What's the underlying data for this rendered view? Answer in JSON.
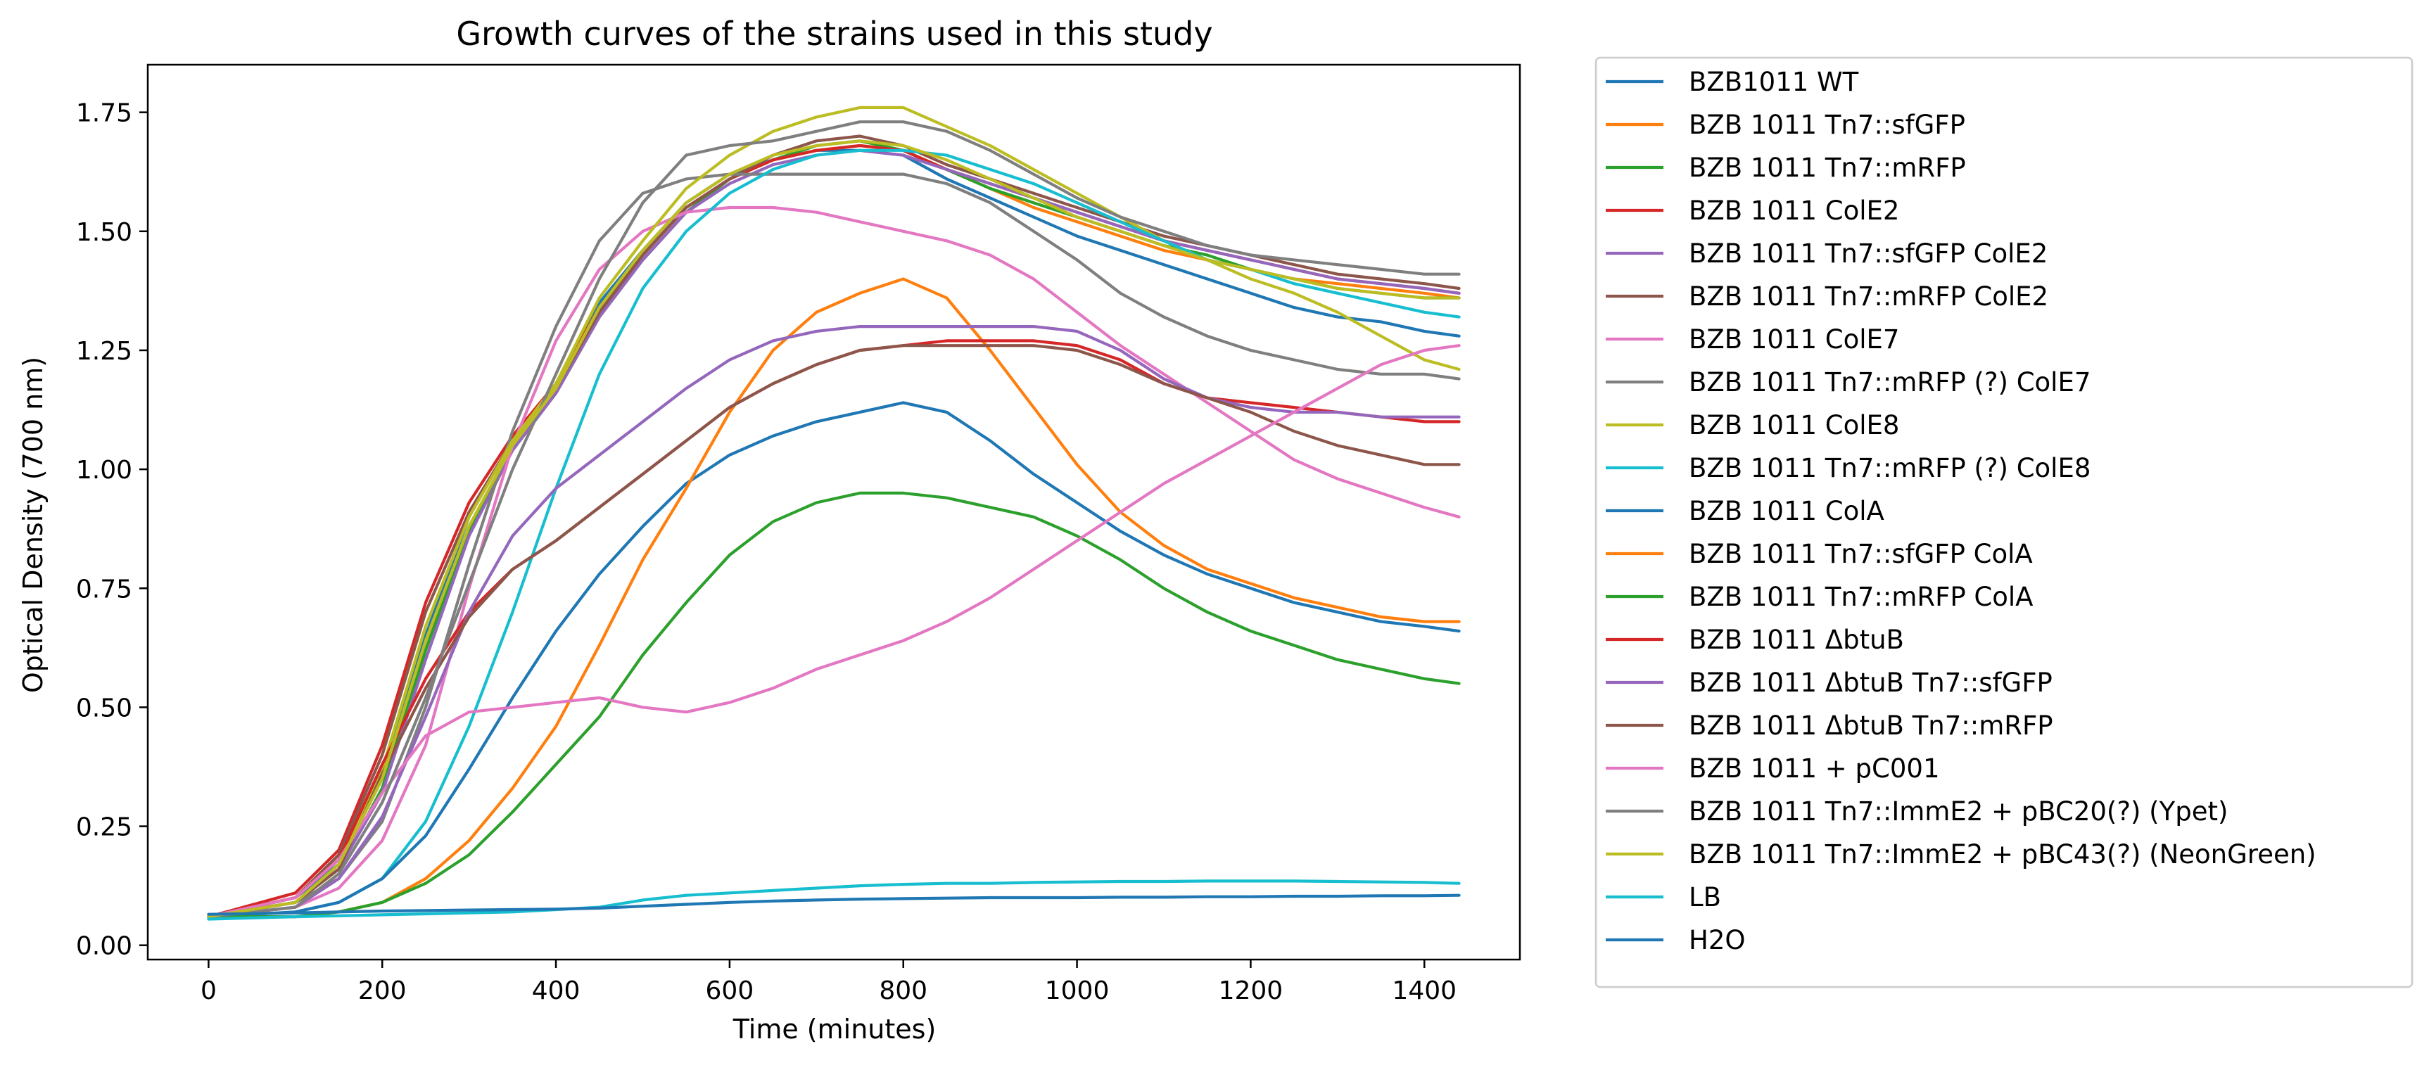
{
  "chart_data": {
    "type": "line",
    "title": "Growth curves of the strains used in this study",
    "xlabel": "Time (minutes)",
    "ylabel": "Optical Density (700 nm)",
    "xlim": [
      -70,
      1510
    ],
    "ylim": [
      -0.03,
      1.85
    ],
    "xticks": [
      0,
      200,
      400,
      600,
      800,
      1000,
      1200,
      1400
    ],
    "xtick_labels": [
      "0",
      "200",
      "400",
      "600",
      "800",
      "1000",
      "1200",
      "1400"
    ],
    "yticks": [
      0.0,
      0.25,
      0.5,
      0.75,
      1.0,
      1.25,
      1.5,
      1.75
    ],
    "ytick_labels": [
      "0.00",
      "0.25",
      "0.50",
      "0.75",
      "1.00",
      "1.25",
      "1.50",
      "1.75"
    ],
    "grid": false,
    "legend_position": "outside-right",
    "x": [
      0,
      100,
      150,
      200,
      250,
      300,
      350,
      400,
      450,
      500,
      550,
      600,
      650,
      700,
      750,
      800,
      850,
      900,
      950,
      1000,
      1050,
      1100,
      1150,
      1200,
      1250,
      1300,
      1350,
      1400,
      1440
    ],
    "series": [
      {
        "name": "BZB1011 WT",
        "color": "#1f77b4",
        "values": [
          0.06,
          0.1,
          0.17,
          0.35,
          0.65,
          0.9,
          1.06,
          1.18,
          1.35,
          1.46,
          1.56,
          1.62,
          1.65,
          1.67,
          1.67,
          1.66,
          1.61,
          1.57,
          1.53,
          1.49,
          1.46,
          1.43,
          1.4,
          1.37,
          1.34,
          1.32,
          1.31,
          1.29,
          1.28
        ]
      },
      {
        "name": "BZB 1011 Tn7::sfGFP",
        "color": "#ff7f0e",
        "values": [
          0.06,
          0.09,
          0.16,
          0.33,
          0.62,
          0.88,
          1.05,
          1.17,
          1.33,
          1.45,
          1.55,
          1.61,
          1.65,
          1.67,
          1.68,
          1.67,
          1.63,
          1.59,
          1.55,
          1.52,
          1.49,
          1.46,
          1.44,
          1.42,
          1.4,
          1.39,
          1.38,
          1.37,
          1.36
        ]
      },
      {
        "name": "BZB 1011 Tn7::mRFP",
        "color": "#2ca02c",
        "values": [
          0.06,
          0.09,
          0.16,
          0.33,
          0.62,
          0.87,
          1.04,
          1.16,
          1.32,
          1.44,
          1.54,
          1.61,
          1.65,
          1.68,
          1.69,
          1.67,
          1.63,
          1.59,
          1.56,
          1.53,
          1.5,
          1.47,
          1.45,
          1.42,
          1.4,
          1.38,
          1.37,
          1.36,
          1.36
        ]
      },
      {
        "name": "BZB 1011 ColE2",
        "color": "#d62728",
        "values": [
          0.06,
          0.11,
          0.2,
          0.42,
          0.72,
          0.93,
          1.07,
          1.18,
          1.34,
          1.45,
          1.55,
          1.61,
          1.65,
          1.67,
          1.68,
          1.67,
          1.63,
          1.6,
          1.57,
          1.54,
          1.51,
          1.48,
          1.46,
          1.44,
          1.42,
          1.4,
          1.39,
          1.38,
          1.37
        ]
      },
      {
        "name": "BZB 1011 Tn7::sfGFP ColE2",
        "color": "#9467bd",
        "values": [
          0.06,
          0.09,
          0.16,
          0.32,
          0.6,
          0.86,
          1.04,
          1.16,
          1.32,
          1.44,
          1.54,
          1.6,
          1.64,
          1.66,
          1.67,
          1.66,
          1.63,
          1.6,
          1.57,
          1.54,
          1.51,
          1.48,
          1.46,
          1.44,
          1.42,
          1.4,
          1.39,
          1.38,
          1.37
        ]
      },
      {
        "name": "BZB 1011 Tn7::mRFP ColE2",
        "color": "#8c564b",
        "values": [
          0.06,
          0.1,
          0.19,
          0.4,
          0.7,
          0.91,
          1.06,
          1.17,
          1.33,
          1.45,
          1.55,
          1.61,
          1.66,
          1.69,
          1.7,
          1.68,
          1.64,
          1.61,
          1.58,
          1.55,
          1.52,
          1.49,
          1.47,
          1.45,
          1.43,
          1.41,
          1.4,
          1.39,
          1.38
        ]
      },
      {
        "name": "BZB 1011 ColE7",
        "color": "#e377c2",
        "values": [
          0.06,
          0.08,
          0.12,
          0.22,
          0.42,
          0.75,
          1.05,
          1.27,
          1.42,
          1.5,
          1.54,
          1.55,
          1.55,
          1.54,
          1.52,
          1.5,
          1.48,
          1.45,
          1.4,
          1.33,
          1.26,
          1.2,
          1.14,
          1.08,
          1.02,
          0.98,
          0.95,
          0.92,
          0.9
        ]
      },
      {
        "name": "BZB 1011 Tn7::mRFP (?) ColE7",
        "color": "#7f7f7f",
        "values": [
          0.06,
          0.09,
          0.14,
          0.26,
          0.5,
          0.8,
          1.08,
          1.3,
          1.48,
          1.58,
          1.61,
          1.62,
          1.62,
          1.62,
          1.62,
          1.62,
          1.6,
          1.56,
          1.5,
          1.44,
          1.37,
          1.32,
          1.28,
          1.25,
          1.23,
          1.21,
          1.2,
          1.2,
          1.19
        ]
      },
      {
        "name": "BZB 1011 ColE8",
        "color": "#bcbd22",
        "values": [
          0.06,
          0.1,
          0.18,
          0.37,
          0.67,
          0.9,
          1.06,
          1.18,
          1.36,
          1.48,
          1.59,
          1.66,
          1.71,
          1.74,
          1.76,
          1.76,
          1.72,
          1.68,
          1.63,
          1.58,
          1.53,
          1.48,
          1.44,
          1.4,
          1.37,
          1.33,
          1.28,
          1.23,
          1.21
        ]
      },
      {
        "name": "BZB 1011 Tn7::mRFP (?) ColE8",
        "color": "#17becf",
        "values": [
          0.06,
          0.07,
          0.09,
          0.14,
          0.26,
          0.46,
          0.7,
          0.96,
          1.2,
          1.38,
          1.5,
          1.58,
          1.63,
          1.66,
          1.67,
          1.67,
          1.66,
          1.63,
          1.6,
          1.56,
          1.52,
          1.48,
          1.44,
          1.42,
          1.39,
          1.37,
          1.35,
          1.33,
          1.32
        ]
      },
      {
        "name": "BZB 1011 ColA",
        "color": "#1f77b4",
        "values": [
          0.06,
          0.07,
          0.09,
          0.14,
          0.23,
          0.37,
          0.52,
          0.66,
          0.78,
          0.88,
          0.97,
          1.03,
          1.07,
          1.1,
          1.12,
          1.14,
          1.12,
          1.06,
          0.99,
          0.93,
          0.87,
          0.82,
          0.78,
          0.75,
          0.72,
          0.7,
          0.68,
          0.67,
          0.66
        ]
      },
      {
        "name": "BZB 1011 Tn7::sfGFP ColA",
        "color": "#ff7f0e",
        "values": [
          0.06,
          0.06,
          0.07,
          0.09,
          0.14,
          0.22,
          0.33,
          0.46,
          0.63,
          0.81,
          0.96,
          1.12,
          1.25,
          1.33,
          1.37,
          1.4,
          1.36,
          1.25,
          1.13,
          1.01,
          0.91,
          0.84,
          0.79,
          0.76,
          0.73,
          0.71,
          0.69,
          0.68,
          0.68
        ]
      },
      {
        "name": "BZB 1011 Tn7::mRFP ColA",
        "color": "#2ca02c",
        "values": [
          0.06,
          0.06,
          0.07,
          0.09,
          0.13,
          0.19,
          0.28,
          0.38,
          0.48,
          0.61,
          0.72,
          0.82,
          0.89,
          0.93,
          0.95,
          0.95,
          0.94,
          0.92,
          0.9,
          0.86,
          0.81,
          0.75,
          0.7,
          0.66,
          0.63,
          0.6,
          0.58,
          0.56,
          0.55
        ]
      },
      {
        "name": "BZB 1011 ΔbtuB",
        "color": "#d62728",
        "values": [
          0.06,
          0.1,
          0.18,
          0.38,
          0.56,
          0.7,
          0.79,
          0.85,
          0.92,
          0.99,
          1.06,
          1.13,
          1.18,
          1.22,
          1.25,
          1.26,
          1.27,
          1.27,
          1.27,
          1.26,
          1.23,
          1.18,
          1.15,
          1.14,
          1.13,
          1.12,
          1.11,
          1.1,
          1.1
        ]
      },
      {
        "name": "BZB 1011 ΔbtuB Tn7::sfGFP",
        "color": "#9467bd",
        "values": [
          0.06,
          0.08,
          0.14,
          0.27,
          0.48,
          0.7,
          0.86,
          0.96,
          1.03,
          1.1,
          1.17,
          1.23,
          1.27,
          1.29,
          1.3,
          1.3,
          1.3,
          1.3,
          1.3,
          1.29,
          1.25,
          1.19,
          1.15,
          1.13,
          1.12,
          1.12,
          1.11,
          1.11,
          1.11
        ]
      },
      {
        "name": "BZB 1011 ΔbtuB Tn7::mRFP",
        "color": "#8c564b",
        "values": [
          0.06,
          0.09,
          0.16,
          0.36,
          0.54,
          0.69,
          0.79,
          0.85,
          0.92,
          0.99,
          1.06,
          1.13,
          1.18,
          1.22,
          1.25,
          1.26,
          1.26,
          1.26,
          1.26,
          1.25,
          1.22,
          1.18,
          1.15,
          1.12,
          1.08,
          1.05,
          1.03,
          1.01,
          1.01
        ]
      },
      {
        "name": "BZB 1011 + pC001",
        "color": "#e377c2",
        "values": [
          0.06,
          0.1,
          0.18,
          0.32,
          0.44,
          0.49,
          0.5,
          0.51,
          0.52,
          0.5,
          0.49,
          0.51,
          0.54,
          0.58,
          0.61,
          0.64,
          0.68,
          0.73,
          0.79,
          0.85,
          0.91,
          0.97,
          1.02,
          1.07,
          1.12,
          1.17,
          1.22,
          1.25,
          1.26
        ]
      },
      {
        "name": "BZB 1011 Tn7::ImmE2 + pBC20(?) (Ypet)",
        "color": "#7f7f7f",
        "values": [
          0.06,
          0.08,
          0.15,
          0.3,
          0.52,
          0.76,
          1.0,
          1.2,
          1.4,
          1.56,
          1.66,
          1.68,
          1.69,
          1.71,
          1.73,
          1.73,
          1.71,
          1.67,
          1.62,
          1.57,
          1.53,
          1.5,
          1.47,
          1.45,
          1.44,
          1.43,
          1.42,
          1.41,
          1.41
        ]
      },
      {
        "name": "BZB 1011 Tn7::ImmE2 + pBC43(?) (NeonGreen)",
        "color": "#bcbd22",
        "values": [
          0.06,
          0.09,
          0.17,
          0.35,
          0.64,
          0.88,
          1.05,
          1.17,
          1.34,
          1.46,
          1.56,
          1.62,
          1.66,
          1.68,
          1.69,
          1.68,
          1.65,
          1.61,
          1.57,
          1.53,
          1.5,
          1.47,
          1.44,
          1.42,
          1.4,
          1.38,
          1.37,
          1.36,
          1.36
        ]
      },
      {
        "name": "LB",
        "color": "#17becf",
        "values": [
          0.055,
          0.06,
          0.062,
          0.064,
          0.066,
          0.068,
          0.07,
          0.075,
          0.08,
          0.095,
          0.105,
          0.11,
          0.115,
          0.12,
          0.125,
          0.128,
          0.13,
          0.13,
          0.132,
          0.133,
          0.134,
          0.134,
          0.135,
          0.135,
          0.135,
          0.134,
          0.133,
          0.132,
          0.13
        ]
      },
      {
        "name": "H2O",
        "color": "#1f77b4",
        "values": [
          0.065,
          0.068,
          0.07,
          0.072,
          0.073,
          0.074,
          0.075,
          0.076,
          0.078,
          0.082,
          0.086,
          0.09,
          0.093,
          0.095,
          0.097,
          0.098,
          0.099,
          0.1,
          0.1,
          0.1,
          0.101,
          0.101,
          0.102,
          0.102,
          0.103,
          0.103,
          0.104,
          0.104,
          0.105
        ]
      }
    ]
  }
}
